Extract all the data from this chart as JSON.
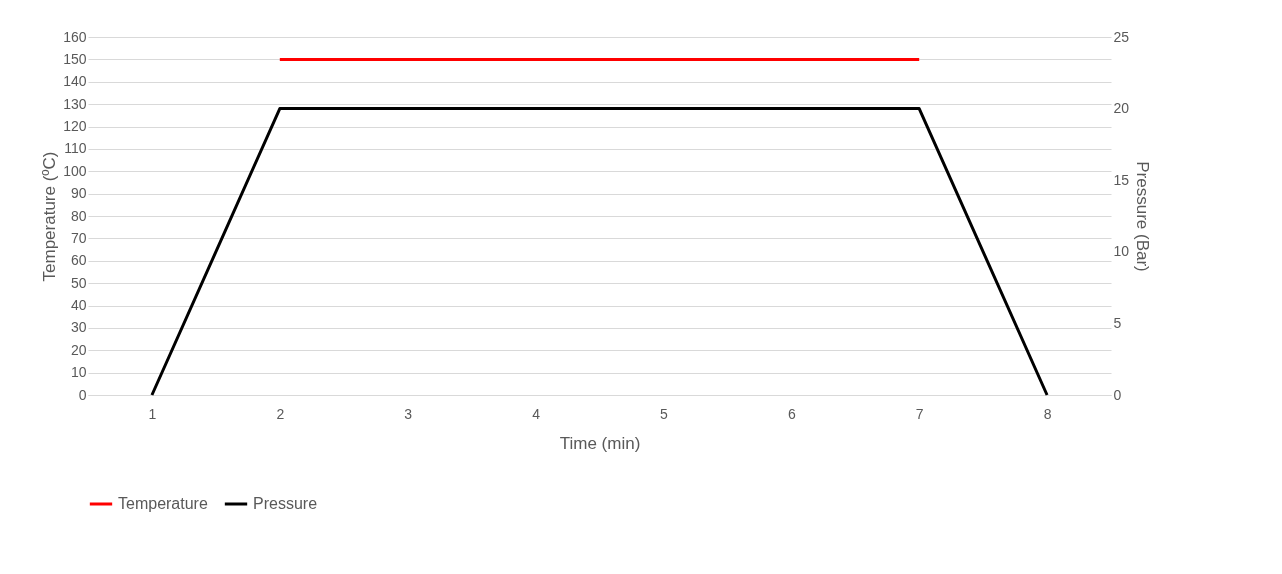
{
  "chart_data": {
    "type": "line",
    "xlabel": "Time (min)",
    "ylabel": "Temperature (ºC)",
    "y2label": "Pressure (Bar)",
    "categories": [
      "1",
      "2",
      "3",
      "4",
      "5",
      "6",
      "7",
      "8"
    ],
    "series": [
      {
        "name": "Temperature",
        "color": "#ff0000",
        "values": [
          null,
          150,
          150,
          150,
          150,
          150,
          150,
          null
        ]
      },
      {
        "name": "Pressure",
        "color": "#000000",
        "axis": "y2",
        "values": [
          0,
          20,
          20,
          20,
          20,
          20,
          20,
          0
        ]
      }
    ],
    "ylim": [
      0,
      160
    ],
    "yticks": [
      0,
      10,
      20,
      30,
      40,
      50,
      60,
      70,
      80,
      90,
      100,
      110,
      120,
      130,
      140,
      150,
      160
    ],
    "y2lim": [
      0,
      25
    ],
    "y2ticks": [
      0,
      5,
      10,
      15,
      20,
      25
    ],
    "grid": "y",
    "legend": "bottom",
    "marker": "none",
    "line_style": "solid"
  }
}
